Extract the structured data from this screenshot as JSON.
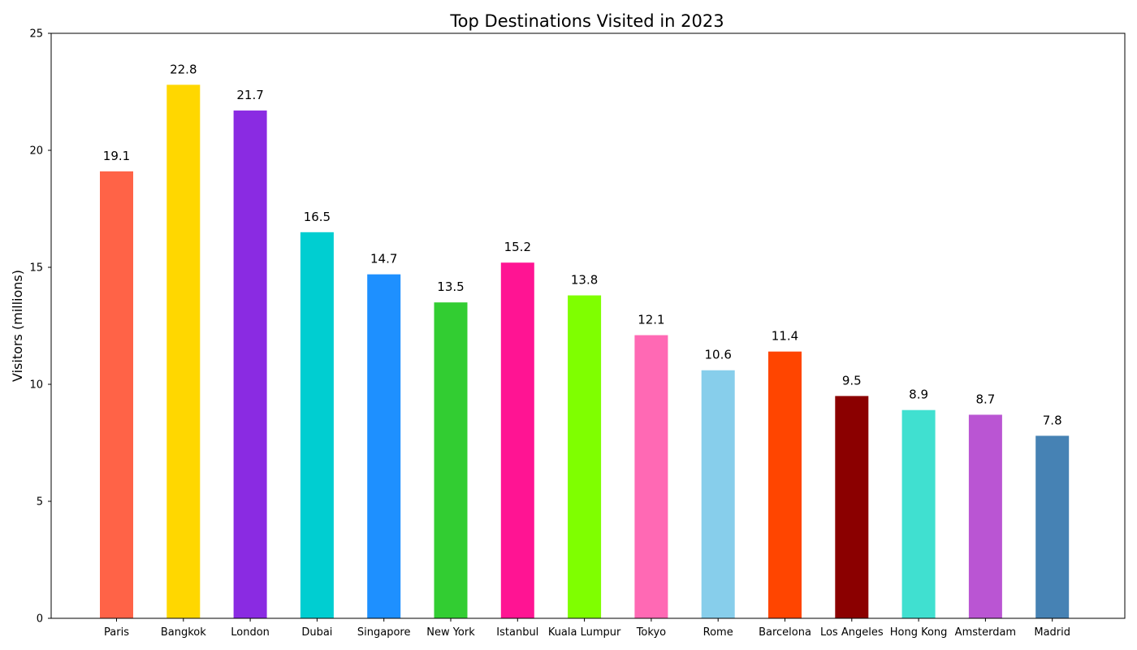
{
  "chart_data": {
    "type": "bar",
    "title": "Top Destinations Visited in 2023",
    "xlabel": "",
    "ylabel": "Visitors (millions)",
    "ylim": [
      0,
      25
    ],
    "yticks": [
      0,
      5,
      10,
      15,
      20,
      25
    ],
    "grid": false,
    "categories": [
      "Paris",
      "Bangkok",
      "London",
      "Dubai",
      "Singapore",
      "New York",
      "Istanbul",
      "Kuala Lumpur",
      "Tokyo",
      "Rome",
      "Barcelona",
      "Los Angeles",
      "Hong Kong",
      "Amsterdam",
      "Madrid"
    ],
    "values": [
      19.1,
      22.8,
      21.7,
      16.5,
      14.7,
      13.5,
      15.2,
      13.8,
      12.1,
      10.6,
      11.4,
      9.5,
      8.9,
      8.7,
      7.8
    ],
    "data_labels": [
      "19.1",
      "22.8",
      "21.7",
      "16.5",
      "14.7",
      "13.5",
      "15.2",
      "13.8",
      "12.1",
      "10.6",
      "11.4",
      "9.5",
      "8.9",
      "8.7",
      "7.8"
    ],
    "colors": [
      "#FF6347",
      "#FFD700",
      "#8A2BE2",
      "#00CED1",
      "#1E90FF",
      "#32CD32",
      "#FF1493",
      "#7FFF00",
      "#FF69B4",
      "#87CEEB",
      "#FF4500",
      "#8B0000",
      "#40E0D0",
      "#BA55D3",
      "#4682B4"
    ]
  }
}
